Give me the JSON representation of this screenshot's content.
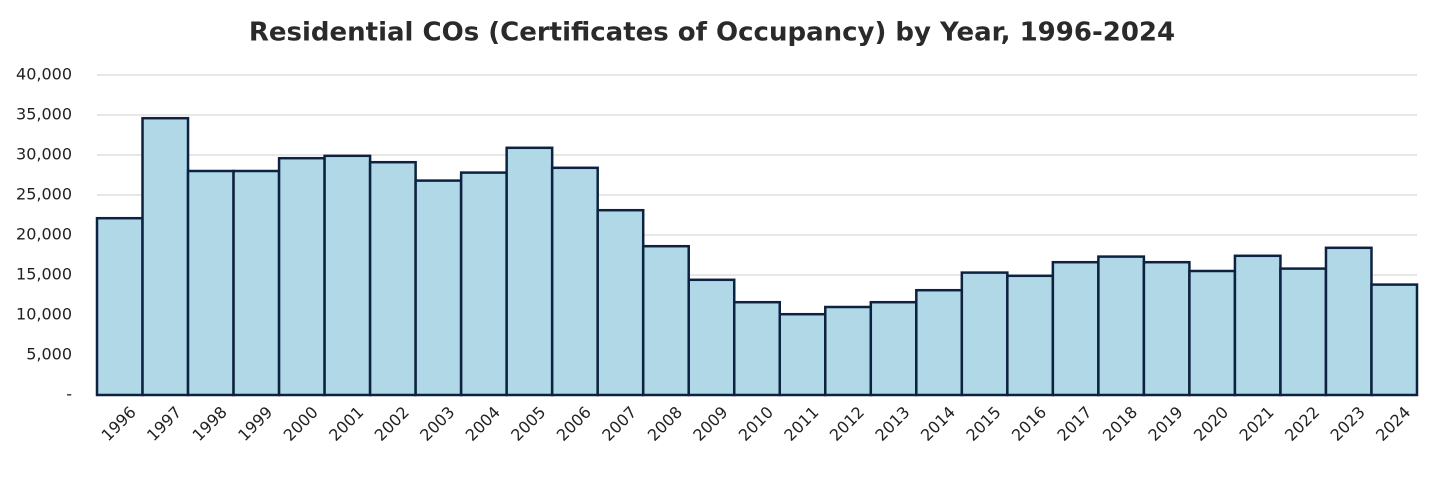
{
  "chart_data": {
    "type": "bar",
    "title": "Residential COs (Certificates of Occupancy) by Year, 1996-2024",
    "categories": [
      "1996",
      "1997",
      "1998",
      "1999",
      "2000",
      "2001",
      "2002",
      "2003",
      "2004",
      "2005",
      "2006",
      "2007",
      "2008",
      "2009",
      "2010",
      "2011",
      "2012",
      "2013",
      "2014",
      "2015",
      "2016",
      "2017",
      "2018",
      "2019",
      "2020",
      "2021",
      "2022",
      "2023",
      "2024"
    ],
    "values": [
      22100,
      34600,
      28000,
      28000,
      29600,
      29900,
      29100,
      26800,
      27800,
      30900,
      28400,
      23100,
      18600,
      14400,
      11600,
      10100,
      11000,
      11600,
      13100,
      15300,
      14900,
      16600,
      17300,
      16600,
      15500,
      17400,
      15800,
      18400,
      13800
    ],
    "color": "#b0d8e6",
    "edgecolor": "#0d2240",
    "ylim": [
      0,
      40000
    ],
    "yticks": [
      {
        "value": 0,
        "label": "-"
      },
      {
        "value": 5000,
        "label": "5,000"
      },
      {
        "value": 10000,
        "label": "10,000"
      },
      {
        "value": 15000,
        "label": "15,000"
      },
      {
        "value": 20000,
        "label": "20,000"
      },
      {
        "value": 25000,
        "label": "25,000"
      },
      {
        "value": 30000,
        "label": "30,000"
      },
      {
        "value": 35000,
        "label": "35,000"
      },
      {
        "value": 40000,
        "label": "40,000"
      }
    ],
    "grid": true
  }
}
